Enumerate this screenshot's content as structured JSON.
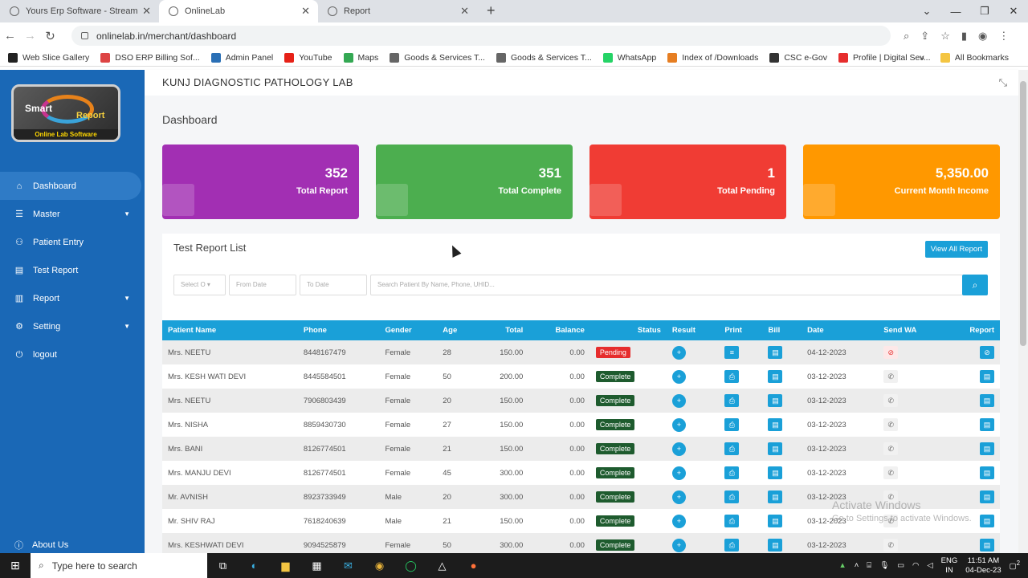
{
  "browser": {
    "tabs": [
      {
        "title": "Yours Erp Software - Streamline",
        "active": false
      },
      {
        "title": "OnlineLab",
        "active": true
      },
      {
        "title": "Report",
        "active": false
      }
    ],
    "new_tab": "+",
    "url": "onlinelab.in/merchant/dashboard",
    "bookmarks": [
      "Web Slice Gallery",
      "DSO ERP Billing Sof...",
      "Admin Panel",
      "YouTube",
      "Maps",
      "Goods & Services T...",
      "Goods & Services T...",
      "WhatsApp",
      "Index of /Downloads",
      "CSC e-Gov",
      "Profile | Digital Sev..."
    ],
    "bookmark_colors": [
      "#222222",
      "#d44",
      "#2a6fb5",
      "#e62117",
      "#34a853",
      "#666666",
      "#666666",
      "#25d366",
      "#e67e22",
      "#333333",
      "#e62d2d"
    ],
    "all_bookmarks": "All Bookmarks"
  },
  "app": {
    "lab_name": "KUNJ DIAGNOSTIC PATHOLOGY LAB",
    "logo": {
      "word1": "Smart",
      "word2": "Report",
      "tagline": "Online Lab Software"
    },
    "sidebar": [
      {
        "label": "Dashboard",
        "icon": "home-icon",
        "active": true,
        "chevron": false
      },
      {
        "label": "Master",
        "icon": "list-icon",
        "active": false,
        "chevron": true
      },
      {
        "label": "Patient Entry",
        "icon": "users-icon",
        "active": false,
        "chevron": false
      },
      {
        "label": "Test Report",
        "icon": "document-icon",
        "active": false,
        "chevron": false
      },
      {
        "label": "Report",
        "icon": "report-icon",
        "active": false,
        "chevron": true
      },
      {
        "label": "Setting",
        "icon": "gear-icon",
        "active": false,
        "chevron": true
      },
      {
        "label": "logout",
        "icon": "logout-icon",
        "active": false,
        "chevron": false
      }
    ],
    "about": "About Us",
    "page_title": "Dashboard",
    "cards": [
      {
        "value": "352",
        "label": "Total Report",
        "color": "#a22fb3"
      },
      {
        "value": "351",
        "label": "Total Complete",
        "color": "#4cae4f"
      },
      {
        "value": "1",
        "label": "Total Pending",
        "color": "#f03c34"
      },
      {
        "value": "5,350.00",
        "label": "Current Month Income",
        "color": "#ff9800"
      }
    ],
    "list_title": "Test Report List",
    "view_all": "View All Report",
    "filters": {
      "select": "Select O",
      "from": "From Date",
      "to": "To Date",
      "search": "Search Patient By Name, Phone, UHID..."
    },
    "columns": [
      "Patient Name",
      "Phone",
      "Gender",
      "Age",
      "Total",
      "Balance",
      "Status",
      "Result",
      "Print",
      "Bill",
      "Date",
      "Send WA",
      "Report"
    ],
    "rows": [
      {
        "name": "Mrs. NEETU",
        "phone": "8448167479",
        "gender": "Female",
        "age": "28",
        "total": "150.00",
        "balance": "0.00",
        "status": "Pending",
        "date": "04-12-2023"
      },
      {
        "name": "Mrs. KESH WATI DEVI",
        "phone": "8445584501",
        "gender": "Female",
        "age": "50",
        "total": "200.00",
        "balance": "0.00",
        "status": "Complete",
        "date": "03-12-2023"
      },
      {
        "name": "Mrs. NEETU",
        "phone": "7906803439",
        "gender": "Female",
        "age": "20",
        "total": "150.00",
        "balance": "0.00",
        "status": "Complete",
        "date": "03-12-2023"
      },
      {
        "name": "Mrs. NISHA",
        "phone": "8859430730",
        "gender": "Female",
        "age": "27",
        "total": "150.00",
        "balance": "0.00",
        "status": "Complete",
        "date": "03-12-2023"
      },
      {
        "name": "Mrs. BANI",
        "phone": "8126774501",
        "gender": "Female",
        "age": "21",
        "total": "150.00",
        "balance": "0.00",
        "status": "Complete",
        "date": "03-12-2023"
      },
      {
        "name": "Mrs. MANJU DEVI",
        "phone": "8126774501",
        "gender": "Female",
        "age": "45",
        "total": "300.00",
        "balance": "0.00",
        "status": "Complete",
        "date": "03-12-2023"
      },
      {
        "name": "Mr. AVNISH",
        "phone": "8923733949",
        "gender": "Male",
        "age": "20",
        "total": "300.00",
        "balance": "0.00",
        "status": "Complete",
        "date": "03-12-2023"
      },
      {
        "name": "Mr. SHIV RAJ",
        "phone": "7618240639",
        "gender": "Male",
        "age": "21",
        "total": "150.00",
        "balance": "0.00",
        "status": "Complete",
        "date": "03-12-2023"
      },
      {
        "name": "Mrs. KESHWATI DEVI",
        "phone": "9094525879",
        "gender": "Female",
        "age": "50",
        "total": "300.00",
        "balance": "0.00",
        "status": "Complete",
        "date": "03-12-2023"
      }
    ]
  },
  "os": {
    "watermark_title": "Activate Windows",
    "watermark_sub": "Go to Settings to activate Windows.",
    "search_placeholder": "Type here to search",
    "lang": "ENG",
    "region": "IN",
    "time": "11:51 AM",
    "date": "04-Dec-23",
    "notification_count": "2"
  }
}
